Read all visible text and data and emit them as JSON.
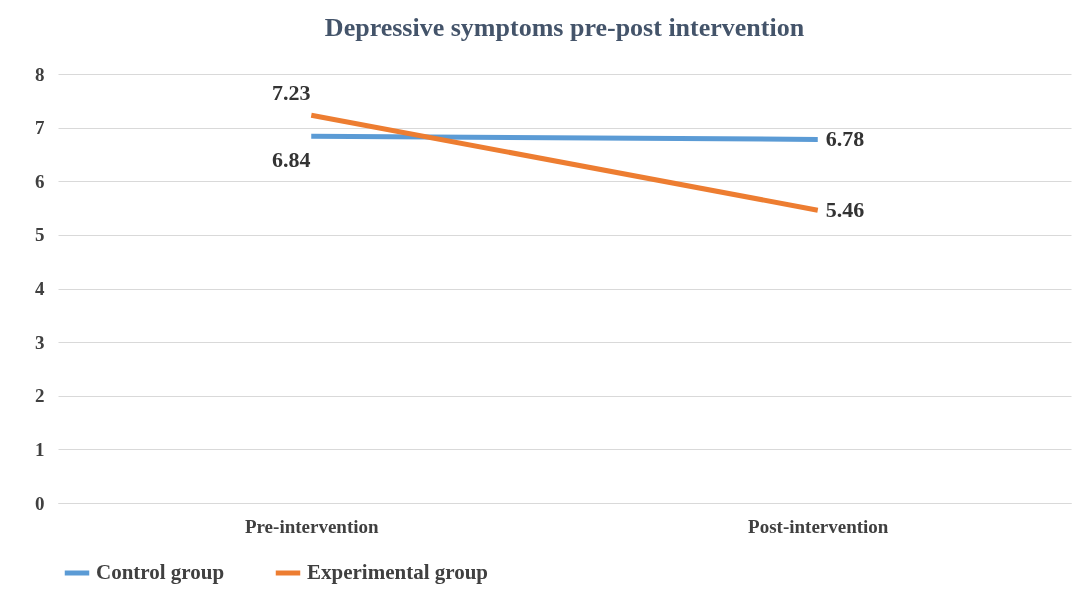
{
  "chart_data": {
    "type": "line",
    "title": "Depressive symptoms pre-post intervention",
    "categories": [
      "Pre-intervention",
      "Post-intervention"
    ],
    "series": [
      {
        "name": "Control group",
        "color": "#5b9bd5",
        "values": [
          6.84,
          6.78
        ]
      },
      {
        "name": "Experimental group",
        "color": "#ed7d31",
        "values": [
          7.23,
          5.46
        ]
      }
    ],
    "ylim": [
      0,
      8
    ],
    "yticks": [
      0,
      1,
      2,
      3,
      4,
      5,
      6,
      7,
      8
    ],
    "grid": "y",
    "legend": "bottom",
    "data_labels": true,
    "marker": "none",
    "line_style": "solid"
  }
}
